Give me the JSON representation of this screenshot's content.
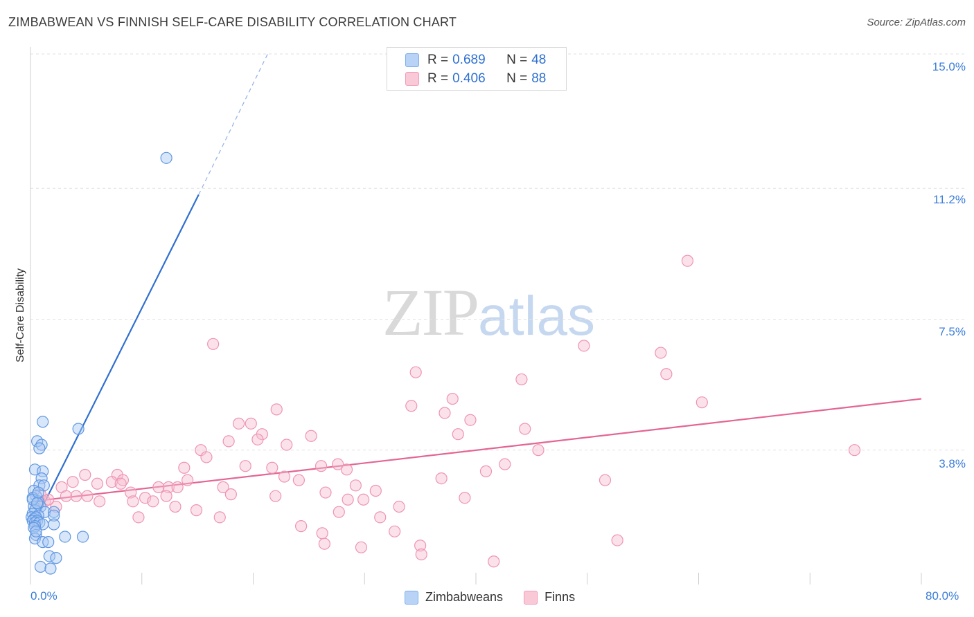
{
  "header": {
    "title": "ZIMBABWEAN VS FINNISH SELF-CARE DISABILITY CORRELATION CHART",
    "source": "Source: ZipAtlas.com"
  },
  "watermark": {
    "zip": "ZIP",
    "atlas": "atlas"
  },
  "legend": {
    "r_label": "R =",
    "n_label": "N =",
    "entries": [
      {
        "r": "0.689",
        "n": "48",
        "color": "#7aaef0",
        "fill": "#b8d3f5"
      },
      {
        "r": "0.406",
        "n": "88",
        "color": "#f29ab8",
        "fill": "#f9c9d8"
      }
    ]
  },
  "bottom_legend": [
    "Zimbabweans",
    "Finns"
  ],
  "colors": {
    "blue": "#2f6fcf",
    "blue_fill": "#a9c8f2",
    "pink": "#e46594",
    "pink_fill": "#f6bed1",
    "grid": "#e2e2e2",
    "tick_text": "#3b7dd8"
  },
  "chart_data": {
    "type": "scatter",
    "title": "ZIMBABWEAN VS FINNISH SELF-CARE DISABILITY CORRELATION CHART",
    "xlabel": "",
    "ylabel": "Self-Care Disability",
    "xlim": [
      0,
      80
    ],
    "ylim": [
      0,
      15
    ],
    "y_ticks": [
      "3.8%",
      "7.5%",
      "11.2%",
      "15.0%"
    ],
    "y_tick_values": [
      3.8,
      7.5,
      11.2,
      15.0
    ],
    "x_ticks": [
      "0.0%",
      "80.0%"
    ],
    "x_tick_values": [
      0,
      80
    ],
    "grid": true,
    "legend_position": "top-center",
    "series": [
      {
        "name": "Zimbabweans",
        "r": 0.689,
        "n": 48,
        "trend": {
          "x0": 0.2,
          "y0": 1.65,
          "x1": 15.1,
          "y1": 11.02,
          "dash_x1": 21.3,
          "dash_y1": 15.0
        },
        "points": [
          [
            12.2,
            12.06
          ],
          [
            1.1,
            4.6
          ],
          [
            4.3,
            4.4
          ],
          [
            0.6,
            4.05
          ],
          [
            1.0,
            3.95
          ],
          [
            0.8,
            3.85
          ],
          [
            0.4,
            3.25
          ],
          [
            1.1,
            3.2
          ],
          [
            1.0,
            3.0
          ],
          [
            0.8,
            2.8
          ],
          [
            1.2,
            2.8
          ],
          [
            0.3,
            2.65
          ],
          [
            0.5,
            2.5
          ],
          [
            0.2,
            2.45
          ],
          [
            0.7,
            2.35
          ],
          [
            0.3,
            2.2
          ],
          [
            0.9,
            2.2
          ],
          [
            0.4,
            2.1
          ],
          [
            1.3,
            2.05
          ],
          [
            2.1,
            2.05
          ],
          [
            2.1,
            1.95
          ],
          [
            0.2,
            2.0
          ],
          [
            0.7,
            1.95
          ],
          [
            0.1,
            1.9
          ],
          [
            0.3,
            1.85
          ],
          [
            0.5,
            1.9
          ],
          [
            0.2,
            1.8
          ],
          [
            0.6,
            1.8
          ],
          [
            0.4,
            1.75
          ],
          [
            0.8,
            1.75
          ],
          [
            1.1,
            1.7
          ],
          [
            2.1,
            1.7
          ],
          [
            0.2,
            2.4
          ],
          [
            0.6,
            2.3
          ],
          [
            0.4,
            1.65
          ],
          [
            0.3,
            1.6
          ],
          [
            0.5,
            1.4
          ],
          [
            0.4,
            1.3
          ],
          [
            1.1,
            1.2
          ],
          [
            1.6,
            1.2
          ],
          [
            3.1,
            1.35
          ],
          [
            4.7,
            1.35
          ],
          [
            1.7,
            0.8
          ],
          [
            2.3,
            0.75
          ],
          [
            0.9,
            0.5
          ],
          [
            1.8,
            0.45
          ],
          [
            0.5,
            1.5
          ],
          [
            0.7,
            2.6
          ]
        ]
      },
      {
        "name": "Finns",
        "r": 0.406,
        "n": 88,
        "trend": {
          "x0": 0.2,
          "y0": 2.35,
          "x1": 80.0,
          "y1": 5.25
        },
        "points": [
          [
            59.0,
            9.15
          ],
          [
            16.4,
            6.8
          ],
          [
            49.7,
            6.75
          ],
          [
            56.6,
            6.55
          ],
          [
            34.6,
            6.0
          ],
          [
            44.1,
            5.8
          ],
          [
            57.1,
            5.95
          ],
          [
            37.9,
            5.25
          ],
          [
            60.3,
            5.15
          ],
          [
            34.2,
            5.05
          ],
          [
            22.1,
            4.95
          ],
          [
            37.2,
            4.85
          ],
          [
            39.5,
            4.65
          ],
          [
            18.7,
            4.55
          ],
          [
            19.8,
            4.55
          ],
          [
            44.4,
            4.4
          ],
          [
            38.4,
            4.25
          ],
          [
            20.8,
            4.25
          ],
          [
            25.2,
            4.2
          ],
          [
            17.8,
            4.05
          ],
          [
            20.4,
            4.1
          ],
          [
            23.0,
            3.95
          ],
          [
            15.3,
            3.8
          ],
          [
            45.6,
            3.8
          ],
          [
            74.0,
            3.8
          ],
          [
            15.8,
            3.6
          ],
          [
            27.6,
            3.4
          ],
          [
            42.6,
            3.4
          ],
          [
            19.3,
            3.35
          ],
          [
            21.7,
            3.3
          ],
          [
            13.8,
            3.3
          ],
          [
            26.1,
            3.35
          ],
          [
            40.9,
            3.2
          ],
          [
            28.4,
            3.25
          ],
          [
            4.9,
            3.1
          ],
          [
            7.8,
            3.1
          ],
          [
            22.8,
            3.05
          ],
          [
            36.9,
            3.0
          ],
          [
            51.6,
            2.95
          ],
          [
            8.3,
            2.95
          ],
          [
            24.1,
            2.95
          ],
          [
            14.1,
            2.95
          ],
          [
            3.8,
            2.9
          ],
          [
            7.3,
            2.9
          ],
          [
            6.0,
            2.85
          ],
          [
            8.1,
            2.85
          ],
          [
            2.8,
            2.75
          ],
          [
            11.5,
            2.75
          ],
          [
            12.4,
            2.75
          ],
          [
            17.3,
            2.75
          ],
          [
            13.2,
            2.75
          ],
          [
            29.2,
            2.8
          ],
          [
            26.5,
            2.6
          ],
          [
            31.0,
            2.65
          ],
          [
            9.0,
            2.6
          ],
          [
            18.0,
            2.55
          ],
          [
            4.1,
            2.5
          ],
          [
            22.0,
            2.5
          ],
          [
            12.2,
            2.5
          ],
          [
            10.3,
            2.45
          ],
          [
            3.2,
            2.5
          ],
          [
            39.0,
            2.45
          ],
          [
            28.5,
            2.4
          ],
          [
            29.9,
            2.4
          ],
          [
            11.0,
            2.35
          ],
          [
            6.2,
            2.35
          ],
          [
            1.3,
            2.35
          ],
          [
            9.2,
            2.35
          ],
          [
            2.3,
            2.2
          ],
          [
            33.1,
            2.2
          ],
          [
            13.0,
            2.2
          ],
          [
            14.9,
            2.1
          ],
          [
            27.7,
            2.05
          ],
          [
            31.4,
            1.9
          ],
          [
            9.7,
            1.9
          ],
          [
            17.0,
            1.9
          ],
          [
            24.3,
            1.65
          ],
          [
            32.7,
            1.5
          ],
          [
            26.2,
            1.45
          ],
          [
            52.7,
            1.25
          ],
          [
            26.4,
            1.15
          ],
          [
            35.0,
            1.1
          ],
          [
            29.7,
            1.05
          ],
          [
            35.1,
            0.85
          ],
          [
            41.6,
            0.65
          ],
          [
            0.9,
            2.55
          ],
          [
            1.6,
            2.4
          ],
          [
            5.1,
            2.5
          ]
        ]
      }
    ]
  }
}
